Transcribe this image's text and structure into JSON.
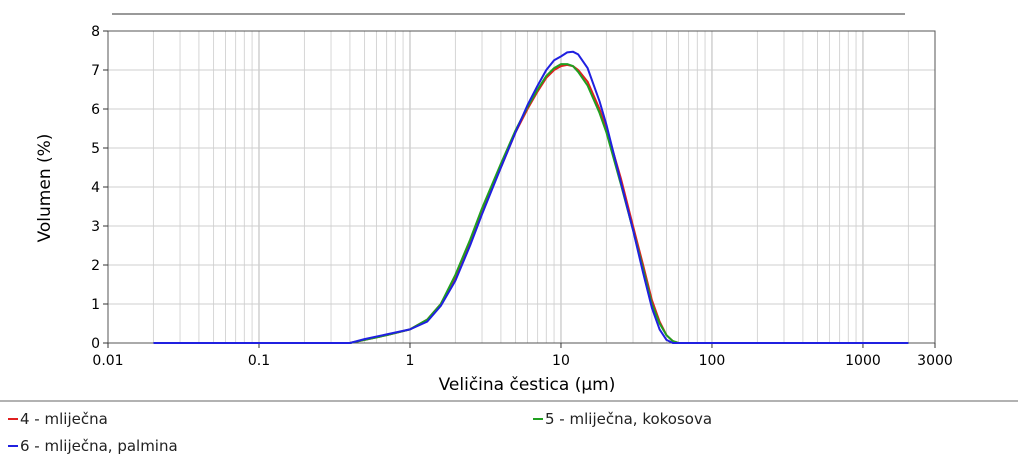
{
  "chart_data": {
    "type": "line",
    "title": "",
    "xlabel": "Veličina čestica (μm)",
    "ylabel": "Volumen (%)",
    "x_scale": "log",
    "xlim": [
      0.01,
      3000
    ],
    "ylim": [
      0,
      8
    ],
    "grid": true,
    "legend_position": "bottom",
    "x_tick_labels": [
      "0.01",
      "0.1",
      "1",
      "10",
      "100",
      "1000",
      "3000"
    ],
    "x_tick_values": [
      0.01,
      0.1,
      1,
      10,
      100,
      1000,
      3000
    ],
    "y_tick_labels": [
      "0",
      "1",
      "2",
      "3",
      "4",
      "5",
      "6",
      "7",
      "8"
    ],
    "y_tick_values": [
      0,
      1,
      2,
      3,
      4,
      5,
      6,
      7,
      8
    ],
    "series": [
      {
        "name": "4 - mliječna",
        "color": "#e02020",
        "points": [
          [
            0.02,
            0
          ],
          [
            0.4,
            0
          ],
          [
            0.5,
            0.08
          ],
          [
            0.7,
            0.2
          ],
          [
            1,
            0.35
          ],
          [
            1.3,
            0.6
          ],
          [
            1.6,
            1.0
          ],
          [
            2,
            1.7
          ],
          [
            2.5,
            2.6
          ],
          [
            3,
            3.4
          ],
          [
            4,
            4.5
          ],
          [
            5,
            5.4
          ],
          [
            6,
            6.0
          ],
          [
            7,
            6.45
          ],
          [
            8,
            6.8
          ],
          [
            9,
            7.0
          ],
          [
            10,
            7.1
          ],
          [
            11,
            7.13
          ],
          [
            12,
            7.1
          ],
          [
            13,
            7.0
          ],
          [
            15,
            6.7
          ],
          [
            18,
            6.0
          ],
          [
            20,
            5.5
          ],
          [
            25,
            4.2
          ],
          [
            30,
            3.0
          ],
          [
            35,
            2.0
          ],
          [
            40,
            1.1
          ],
          [
            45,
            0.55
          ],
          [
            50,
            0.2
          ],
          [
            55,
            0.05
          ],
          [
            60,
            0
          ],
          [
            2000,
            0
          ]
        ]
      },
      {
        "name": "5 - mliječna, kokosova",
        "color": "#20a020",
        "points": [
          [
            0.02,
            0
          ],
          [
            0.4,
            0
          ],
          [
            0.5,
            0.08
          ],
          [
            0.7,
            0.2
          ],
          [
            1,
            0.35
          ],
          [
            1.3,
            0.6
          ],
          [
            1.6,
            1.0
          ],
          [
            2,
            1.75
          ],
          [
            2.5,
            2.65
          ],
          [
            3,
            3.45
          ],
          [
            4,
            4.6
          ],
          [
            5,
            5.45
          ],
          [
            6,
            6.05
          ],
          [
            7,
            6.5
          ],
          [
            8,
            6.85
          ],
          [
            9,
            7.05
          ],
          [
            10,
            7.15
          ],
          [
            11,
            7.15
          ],
          [
            12,
            7.1
          ],
          [
            13,
            6.95
          ],
          [
            15,
            6.6
          ],
          [
            18,
            5.9
          ],
          [
            20,
            5.4
          ],
          [
            25,
            4.05
          ],
          [
            30,
            2.9
          ],
          [
            35,
            1.9
          ],
          [
            40,
            1.0
          ],
          [
            45,
            0.5
          ],
          [
            50,
            0.2
          ],
          [
            55,
            0.05
          ],
          [
            60,
            0
          ],
          [
            2000,
            0
          ]
        ]
      },
      {
        "name": "6 - mliječna, palmina",
        "color": "#2020e0",
        "points": [
          [
            0.02,
            0
          ],
          [
            0.4,
            0
          ],
          [
            0.5,
            0.1
          ],
          [
            0.7,
            0.22
          ],
          [
            1,
            0.35
          ],
          [
            1.3,
            0.55
          ],
          [
            1.6,
            0.95
          ],
          [
            2,
            1.6
          ],
          [
            2.5,
            2.5
          ],
          [
            3,
            3.3
          ],
          [
            4,
            4.5
          ],
          [
            5,
            5.4
          ],
          [
            6,
            6.1
          ],
          [
            7,
            6.6
          ],
          [
            8,
            7.0
          ],
          [
            9,
            7.25
          ],
          [
            10,
            7.35
          ],
          [
            11,
            7.45
          ],
          [
            12,
            7.47
          ],
          [
            13,
            7.4
          ],
          [
            15,
            7.05
          ],
          [
            18,
            6.2
          ],
          [
            20,
            5.6
          ],
          [
            25,
            4.1
          ],
          [
            30,
            2.9
          ],
          [
            35,
            1.8
          ],
          [
            40,
            0.9
          ],
          [
            45,
            0.35
          ],
          [
            50,
            0.08
          ],
          [
            55,
            0
          ],
          [
            2000,
            0
          ]
        ]
      }
    ]
  }
}
